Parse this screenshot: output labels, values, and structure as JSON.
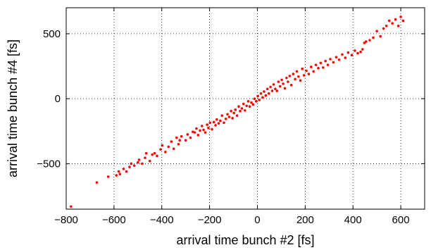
{
  "chart_data": {
    "type": "scatter",
    "title": "",
    "xlabel": "arrival time bunch #2 [fs]",
    "ylabel": "arrival time bunch #4 [fs]",
    "xlim": [
      -800,
      700
    ],
    "ylim": [
      -850,
      700
    ],
    "xticks": [
      -800,
      -600,
      -400,
      -200,
      0,
      200,
      400,
      600
    ],
    "xtick_labels": [
      "−800",
      "−600",
      "−400",
      "−200",
      "0",
      "200",
      "400",
      "600"
    ],
    "yticks": [
      -500,
      0,
      500
    ],
    "ytick_labels": [
      "−500",
      "0",
      "500"
    ],
    "grid": true,
    "marker_color": "#ff0000",
    "series": [
      {
        "x": [
          -780,
          -672,
          -624,
          -590,
          -580,
          -575,
          -560,
          -548,
          -535,
          -528,
          -515,
          -500,
          -495,
          -482,
          -470,
          -465,
          -450,
          -440,
          -430,
          -420,
          -405,
          -398,
          -385,
          -372,
          -360,
          -350,
          -338,
          -330,
          -325,
          -318,
          -300,
          -292,
          -280,
          -270,
          -262,
          -255,
          -248,
          -240,
          -232,
          -225,
          -218,
          -210,
          -205,
          -198,
          -190,
          -182,
          -175,
          -170,
          -162,
          -155,
          -148,
          -140,
          -132,
          -125,
          -118,
          -110,
          -104,
          -98,
          -92,
          -85,
          -78,
          -72,
          -65,
          -58,
          -52,
          -45,
          -38,
          -32,
          -25,
          -18,
          -12,
          -5,
          2,
          8,
          15,
          22,
          28,
          35,
          42,
          48,
          55,
          62,
          68,
          75,
          82,
          88,
          95,
          102,
          108,
          115,
          122,
          128,
          135,
          142,
          150,
          158,
          165,
          172,
          180,
          188,
          195,
          205,
          215,
          225,
          235,
          245,
          255,
          265,
          275,
          285,
          295,
          305,
          318,
          330,
          342,
          355,
          368,
          380,
          395,
          408,
          420,
          432,
          440,
          448,
          455,
          470,
          485,
          500,
          515,
          528,
          540,
          552,
          565,
          578,
          590,
          600,
          610
        ],
        "y": [
          -830,
          -645,
          -600,
          -590,
          -560,
          -580,
          -540,
          -560,
          -525,
          -500,
          -515,
          -490,
          -470,
          -500,
          -455,
          -420,
          -480,
          -430,
          -420,
          -440,
          -390,
          -360,
          -410,
          -370,
          -330,
          -385,
          -300,
          -350,
          -320,
          -290,
          -320,
          -275,
          -300,
          -255,
          -260,
          -230,
          -280,
          -245,
          -210,
          -240,
          -260,
          -200,
          -225,
          -185,
          -235,
          -180,
          -205,
          -160,
          -190,
          -170,
          -130,
          -185,
          -155,
          -120,
          -140,
          -95,
          -150,
          -110,
          -85,
          -130,
          -60,
          -95,
          -75,
          -40,
          -90,
          -55,
          -20,
          -60,
          -30,
          -45,
          0,
          -20,
          20,
          -10,
          40,
          10,
          55,
          25,
          75,
          40,
          90,
          60,
          110,
          75,
          60,
          130,
          95,
          145,
          115,
          80,
          160,
          130,
          175,
          105,
          190,
          150,
          210,
          170,
          140,
          230,
          180,
          215,
          190,
          245,
          210,
          260,
          235,
          275,
          240,
          290,
          260,
          305,
          280,
          320,
          300,
          340,
          315,
          355,
          335,
          370,
          350,
          360,
          380,
          430,
          440,
          450,
          470,
          520,
          480,
          540,
          560,
          600,
          580,
          610,
          560,
          630,
          600
        ]
      }
    ]
  }
}
